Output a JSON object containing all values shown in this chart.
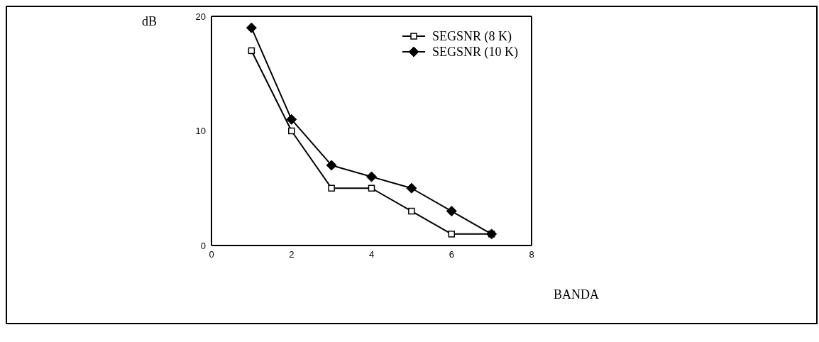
{
  "chart_data": {
    "type": "line",
    "xlabel": "BANDA",
    "ylabel": "dB",
    "x": [
      1,
      2,
      3,
      4,
      5,
      6,
      7
    ],
    "series": [
      {
        "name": "SEGSNR (8 K)",
        "color": "#000000",
        "marker": "square",
        "values": [
          17,
          10,
          5,
          5,
          3,
          1,
          1
        ]
      },
      {
        "name": "SEGSNR (10 K)",
        "color": "#000000",
        "marker": "diamond",
        "values": [
          19,
          11,
          7,
          6,
          5,
          3,
          1
        ]
      }
    ],
    "xlim": [
      0,
      8
    ],
    "xticks": [
      0,
      2,
      4,
      6,
      8
    ],
    "ylim": [
      0,
      20
    ],
    "yticks": [
      0,
      10,
      20
    ],
    "grid": false,
    "legend": "top right",
    "line_style": "solid"
  }
}
